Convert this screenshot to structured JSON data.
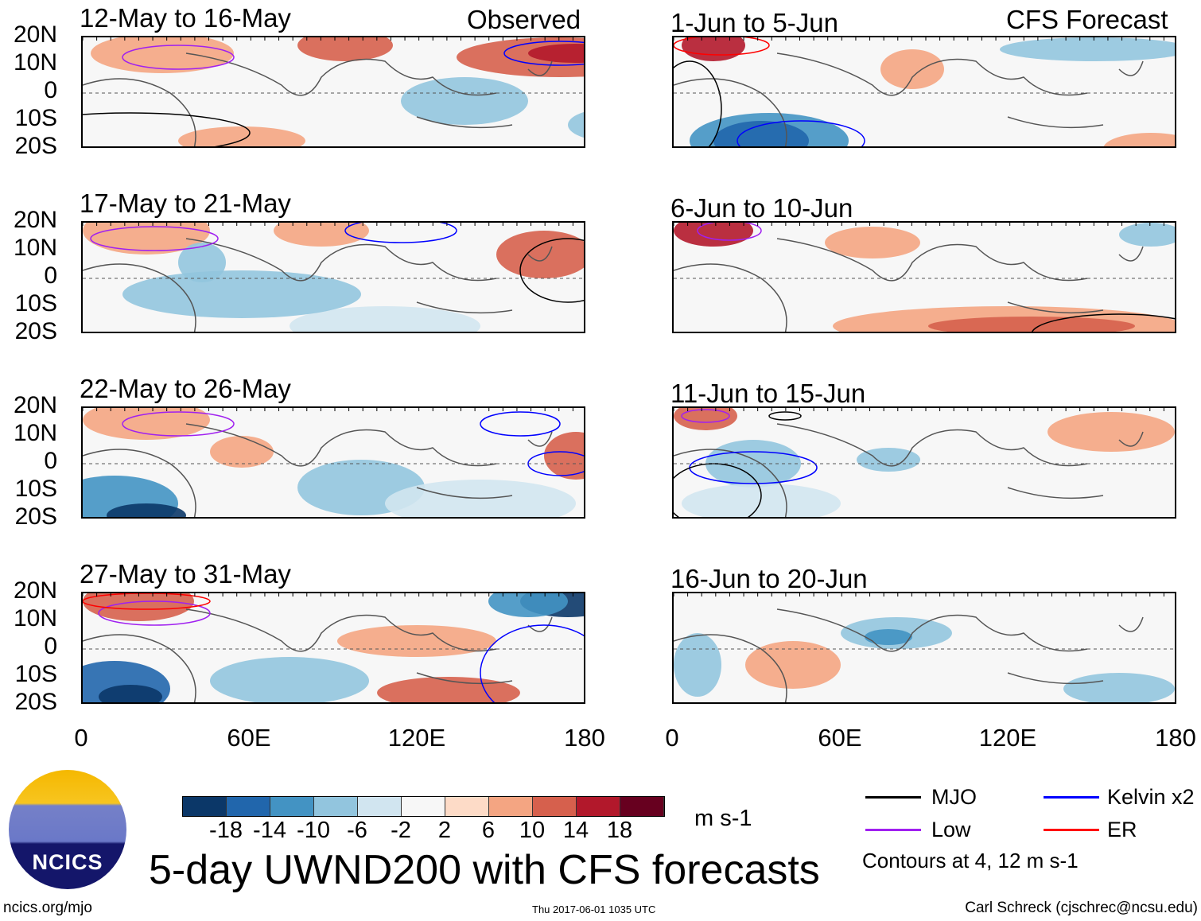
{
  "observed_label": "Observed",
  "forecast_label": "CFS Forecast",
  "observed_panels": [
    "12-May to 16-May",
    "17-May to 21-May",
    "22-May to 26-May",
    "27-May to 31-May"
  ],
  "forecast_panels": [
    "1-Jun to 5-Jun",
    "6-Jun to 10-Jun",
    "11-Jun to 15-Jun",
    "16-Jun to 20-Jun"
  ],
  "lat_labels": [
    "20N",
    "10N",
    "0",
    "10S",
    "20S"
  ],
  "lon_labels": [
    "0",
    "60E",
    "120E",
    "180"
  ],
  "colorbar": {
    "colors": [
      "#0b3768",
      "#2166ac",
      "#4393c3",
      "#92c5de",
      "#d1e5f0",
      "#f7f7f7",
      "#fddbc7",
      "#f4a582",
      "#d6604d",
      "#b2182b",
      "#67001f"
    ],
    "ticks": [
      "-18",
      "-14",
      "-10",
      "-6",
      "-2",
      "2",
      "6",
      "10",
      "14",
      "18"
    ],
    "units": "m s-1"
  },
  "legend": {
    "mjo": "MJO",
    "kelvin": "Kelvin x2",
    "low": "Low",
    "er": "ER",
    "contours": "Contours at 4, 12 m s-1",
    "colors": {
      "mjo": "#000000",
      "kelvin": "#0000ff",
      "low": "#a020f0",
      "er": "#ff0000"
    }
  },
  "title": "5-day UWND200 with CFS forecasts",
  "logo": "NCICS",
  "footer": {
    "url": "ncics.org/mjo",
    "timestamp": "Thu 2017-06-01 1035 UTC",
    "author": "Carl Schreck (cjschrec@ncsu.edu)"
  }
}
